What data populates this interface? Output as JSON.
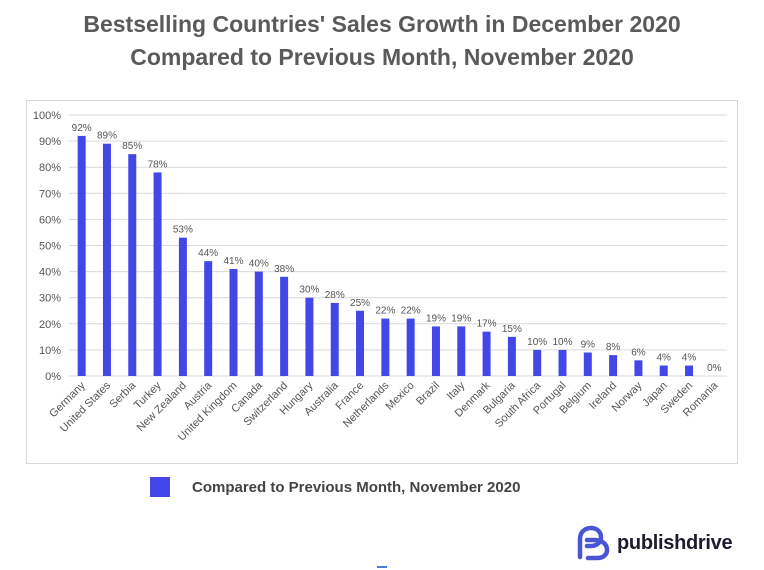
{
  "title_line1": "Bestselling Countries' Sales Growth in December 2020",
  "title_line2": "Compared to Previous Month, November 2020",
  "legend_label": "Compared to Previous Month, November 2020",
  "brand": {
    "name": "publishdrive",
    "icon": "publishdrive-logo-icon",
    "color": "#4a55d6"
  },
  "colors": {
    "bar": "#4347e8",
    "grid": "#d9d9d9",
    "text": "#555555"
  },
  "chart_data": {
    "type": "bar",
    "title": "Bestselling Countries' Sales Growth in December 2020 Compared to Previous Month, November 2020",
    "xlabel": "",
    "ylabel": "",
    "ylim": [
      0,
      100
    ],
    "yticks": [
      "0%",
      "10%",
      "20%",
      "30%",
      "40%",
      "50%",
      "60%",
      "70%",
      "80%",
      "90%",
      "100%"
    ],
    "grid": true,
    "legend_position": "bottom",
    "categories": [
      "Germany",
      "United States",
      "Serbia",
      "Turkey",
      "New Zealand",
      "Austria",
      "United Kingdom",
      "Canada",
      "Switzerland",
      "Hungary",
      "Australia",
      "France",
      "Netherlands",
      "Mexico",
      "Brazil",
      "Italy",
      "Denmark",
      "Bulgaria",
      "South Africa",
      "Portugal",
      "Belgium",
      "Ireland",
      "Norway",
      "Japan",
      "Sweden",
      "Romania"
    ],
    "series": [
      {
        "name": "Compared to Previous Month, November 2020",
        "values": [
          92,
          89,
          85,
          78,
          53,
          44,
          41,
          40,
          38,
          30,
          28,
          25,
          22,
          22,
          19,
          19,
          17,
          15,
          10,
          10,
          9,
          8,
          6,
          4,
          4,
          0
        ],
        "labels": [
          "92%",
          "89%",
          "85%",
          "78%",
          "53%",
          "44%",
          "41%",
          "40%",
          "38%",
          "30%",
          "28%",
          "25%",
          "22%",
          "22%",
          "19%",
          "19%",
          "17%",
          "15%",
          "10%",
          "10%",
          "9%",
          "8%",
          "6%",
          "4%",
          "4%",
          "0%"
        ]
      }
    ]
  }
}
